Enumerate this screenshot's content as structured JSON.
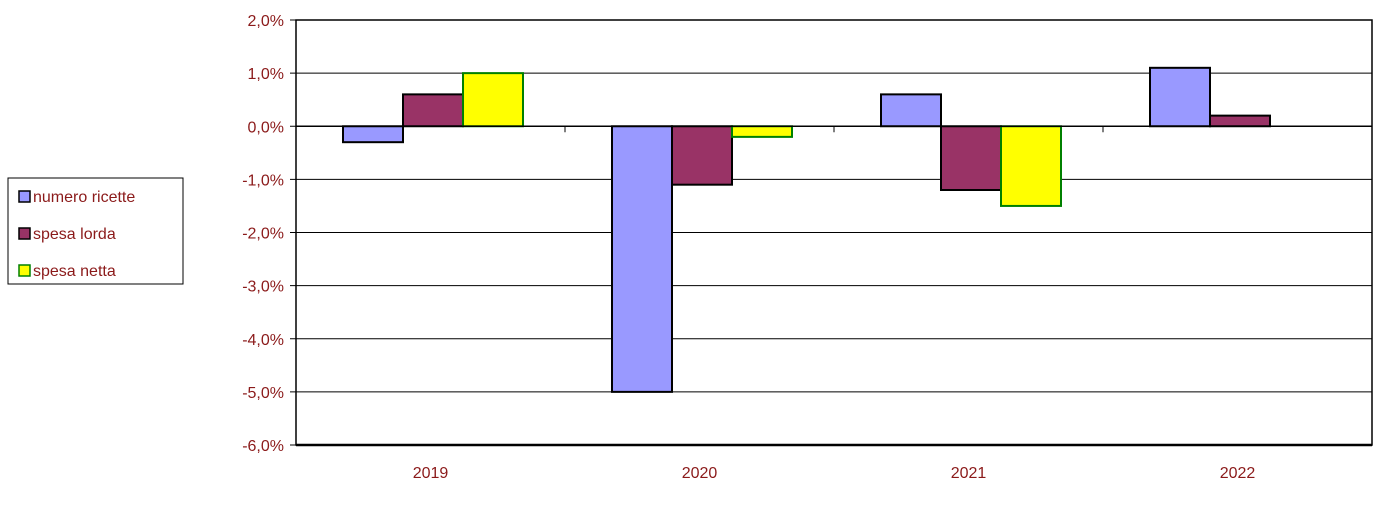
{
  "chart_data": {
    "type": "bar",
    "categories": [
      "2019",
      "2020",
      "2021",
      "2022"
    ],
    "series": [
      {
        "name": "numero ricette",
        "values": [
          -0.3,
          -5.0,
          0.6,
          1.1
        ],
        "color": "#9999ff"
      },
      {
        "name": "spesa lorda",
        "values": [
          0.6,
          -1.1,
          -1.2,
          0.2
        ],
        "color": "#993366"
      },
      {
        "name": "spesa netta",
        "values": [
          1.0,
          -0.2,
          -1.5,
          null
        ],
        "color": "#ffff00"
      }
    ],
    "ylim": [
      -6.0,
      2.0
    ],
    "yticks": [
      "2,0%",
      "1,0%",
      "0,0%",
      "-1,0%",
      "-2,0%",
      "-3,0%",
      "-4,0%",
      "-5,0%",
      "-6,0%"
    ],
    "title": "",
    "xlabel": "",
    "ylabel": "",
    "grid": true,
    "legend_position": "left"
  }
}
